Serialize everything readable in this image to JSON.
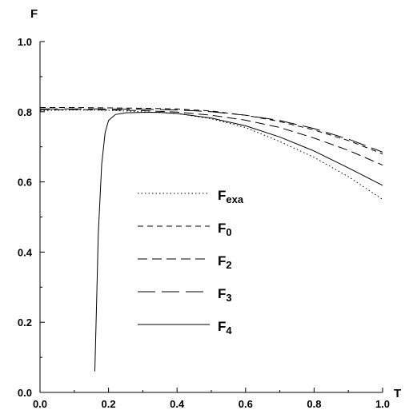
{
  "chart_data": {
    "type": "line",
    "xlabel": "T",
    "ylabel": "F",
    "xlim": [
      0.0,
      1.0
    ],
    "ylim": [
      0.0,
      1.0
    ],
    "x_ticks": [
      "0.0",
      "0.2",
      "0.4",
      "0.6",
      "0.8",
      "1.0"
    ],
    "y_ticks": [
      "0.0",
      "0.2",
      "0.4",
      "0.6",
      "0.8",
      "1.0"
    ],
    "grid": false,
    "legend_position": "center-left",
    "series": [
      {
        "name": "F",
        "sub": "exa",
        "style": "dotted",
        "x": [
          0.0,
          0.1,
          0.2,
          0.3,
          0.4,
          0.5,
          0.6,
          0.7,
          0.8,
          0.9,
          1.0
        ],
        "y": [
          0.803,
          0.805,
          0.804,
          0.8,
          0.795,
          0.78,
          0.755,
          0.715,
          0.67,
          0.615,
          0.55
        ]
      },
      {
        "name": "F",
        "sub": "0",
        "style": "short-dash",
        "x": [
          0.0,
          0.1,
          0.2,
          0.3,
          0.4,
          0.5,
          0.6,
          0.7,
          0.8,
          0.9,
          1.0
        ],
        "y": [
          0.812,
          0.812,
          0.811,
          0.81,
          0.808,
          0.802,
          0.79,
          0.772,
          0.748,
          0.718,
          0.68
        ]
      },
      {
        "name": "F",
        "sub": "2",
        "style": "dash",
        "x": [
          0.0,
          0.1,
          0.2,
          0.3,
          0.4,
          0.5,
          0.6,
          0.7,
          0.8,
          0.9,
          1.0
        ],
        "y": [
          0.806,
          0.806,
          0.805,
          0.803,
          0.799,
          0.79,
          0.776,
          0.755,
          0.725,
          0.69,
          0.648
        ]
      },
      {
        "name": "F",
        "sub": "3",
        "style": "long-dash",
        "x": [
          0.0,
          0.1,
          0.2,
          0.3,
          0.4,
          0.5,
          0.6,
          0.7,
          0.8,
          0.9,
          1.0
        ],
        "y": [
          0.808,
          0.808,
          0.808,
          0.807,
          0.805,
          0.8,
          0.79,
          0.775,
          0.752,
          0.722,
          0.685
        ]
      },
      {
        "name": "F",
        "sub": "4",
        "style": "solid",
        "x": [
          0.16,
          0.165,
          0.17,
          0.18,
          0.19,
          0.2,
          0.22,
          0.25,
          0.3,
          0.35,
          0.4,
          0.5,
          0.6,
          0.7,
          0.8,
          0.9,
          1.0
        ],
        "y": [
          0.06,
          0.25,
          0.45,
          0.65,
          0.74,
          0.775,
          0.792,
          0.797,
          0.798,
          0.798,
          0.795,
          0.782,
          0.76,
          0.728,
          0.688,
          0.64,
          0.59
        ]
      }
    ]
  }
}
